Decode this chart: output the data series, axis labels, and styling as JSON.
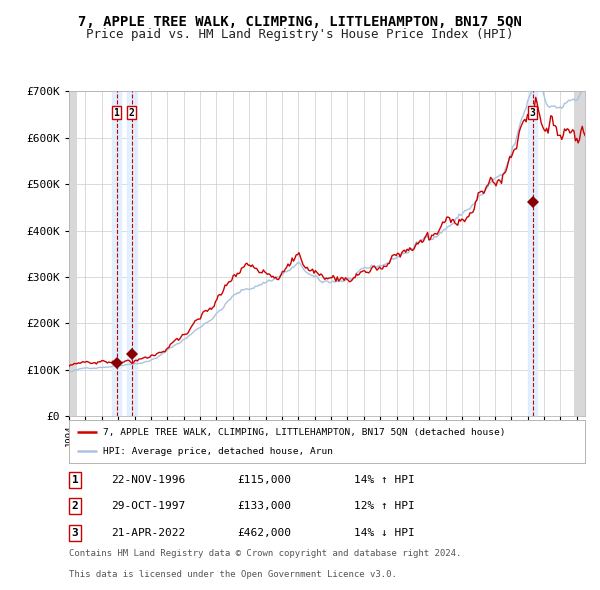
{
  "title": "7, APPLE TREE WALK, CLIMPING, LITTLEHAMPTON, BN17 5QN",
  "subtitle": "Price paid vs. HM Land Registry's House Price Index (HPI)",
  "ylim": [
    0,
    700000
  ],
  "yticks": [
    0,
    100000,
    200000,
    300000,
    400000,
    500000,
    600000,
    700000
  ],
  "ytick_labels": [
    "£0",
    "£100K",
    "£200K",
    "£300K",
    "£400K",
    "£500K",
    "£600K",
    "£700K"
  ],
  "bg_color": "#ffffff",
  "plot_bg_color": "#ffffff",
  "grid_color": "#cccccc",
  "hpi_line_color": "#aac4e0",
  "price_line_color": "#cc0000",
  "sale_marker_color": "#880000",
  "vline_color": "#cc0000",
  "vband_color": "#ddeeff",
  "title_fontsize": 10,
  "subtitle_fontsize": 9,
  "legend_label_red": "7, APPLE TREE WALK, CLIMPING, LITTLEHAMPTON, BN17 5QN (detached house)",
  "legend_label_blue": "HPI: Average price, detached house, Arun",
  "sale_dates": [
    1996.9,
    1997.83,
    2022.3
  ],
  "sale_prices": [
    115000,
    133000,
    462000
  ],
  "table_rows": [
    {
      "num": "1",
      "date": "22-NOV-1996",
      "price": "£115,000",
      "hpi": "14% ↑ HPI"
    },
    {
      "num": "2",
      "date": "29-OCT-1997",
      "price": "£133,000",
      "hpi": "12% ↑ HPI"
    },
    {
      "num": "3",
      "date": "21-APR-2022",
      "price": "£462,000",
      "hpi": "14% ↓ HPI"
    }
  ],
  "footer_line1": "Contains HM Land Registry data © Crown copyright and database right 2024.",
  "footer_line2": "This data is licensed under the Open Government Licence v3.0.",
  "xmin": 1994.0,
  "xmax": 2025.5
}
